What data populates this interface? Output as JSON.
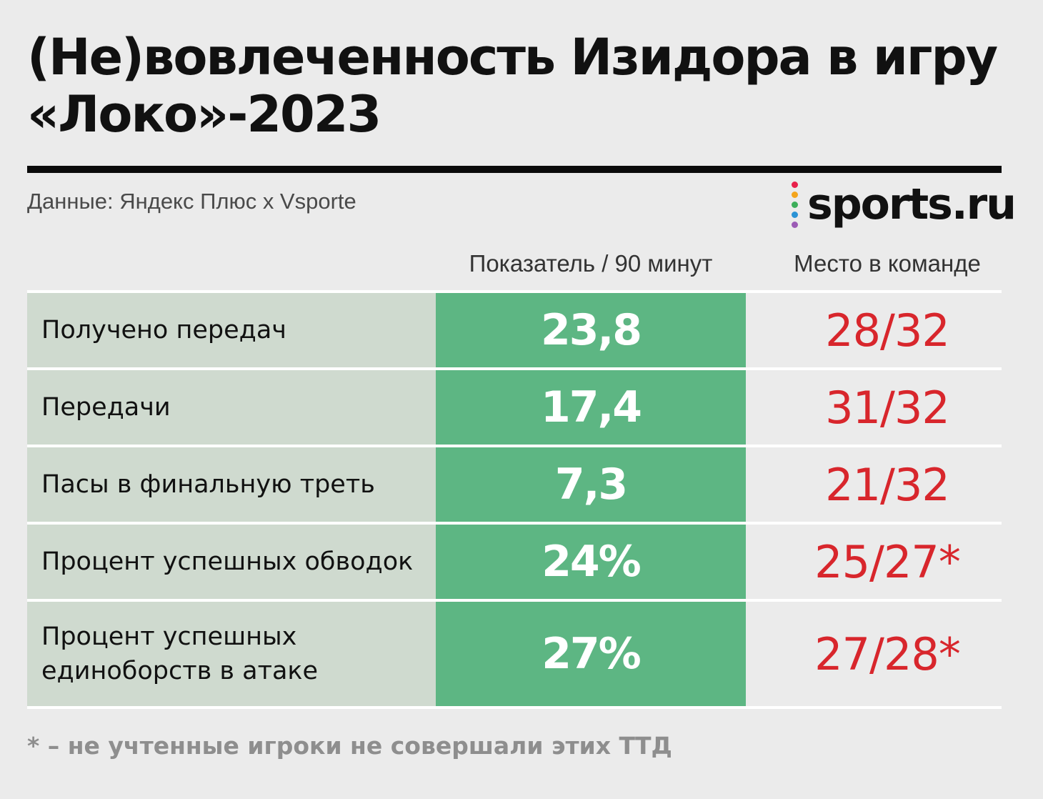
{
  "title": "(Не)вовлеченность Изидора в игру «Локо»-2023",
  "source": "Данные: Яндекс Плюс х Vsporte",
  "logo": {
    "text": "sports.ru",
    "dot_colors": [
      "#e8204b",
      "#f4a51c",
      "#3cae5a",
      "#2a93d5",
      "#9b5bb5"
    ]
  },
  "colors": {
    "value_cell": "#5db683",
    "label_cell": "#cfdacf",
    "rank_text": "#d8262c"
  },
  "chart_data": {
    "type": "table",
    "title": "(Не)вовлеченность Изидора в игру «Локо»-2023",
    "columns": [
      "",
      "Показатель / 90 минут",
      "Место в команде"
    ],
    "rows": [
      {
        "label": "Получено передач",
        "value": "23,8",
        "rank": "28/32"
      },
      {
        "label": "Передачи",
        "value": "17,4",
        "rank": "31/32"
      },
      {
        "label": "Пасы в финальную треть",
        "value": "7,3",
        "rank": "21/32"
      },
      {
        "label": "Процент успешных обводок",
        "value": "24%",
        "rank": "25/27*"
      },
      {
        "label": "Процент успешных единоборств в атаке",
        "value": "27%",
        "rank": "27/28*"
      }
    ]
  },
  "footnote": "* – не учтенные игроки не совершали этих ТТД"
}
